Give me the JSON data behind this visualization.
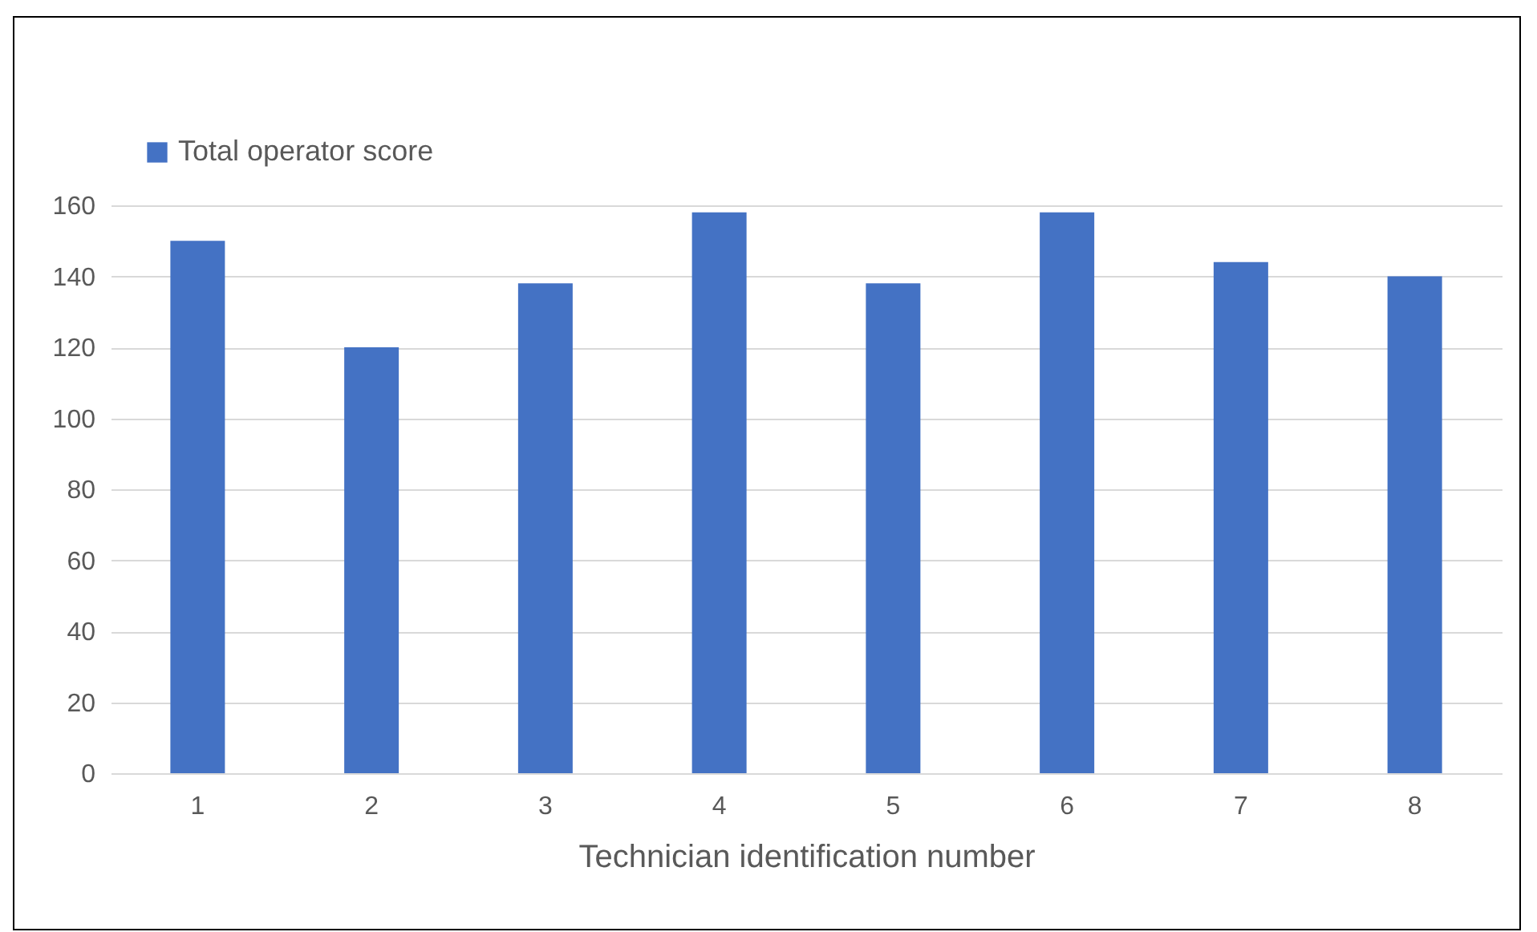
{
  "chart_data": {
    "type": "bar",
    "xlabel": "Technician identification number",
    "categories": [
      "1",
      "2",
      "3",
      "4",
      "5",
      "6",
      "7",
      "8"
    ],
    "series": [
      {
        "name": "Total operator score",
        "color": "#4472c4",
        "values": [
          150,
          120,
          138,
          158,
          138,
          158,
          144,
          140
        ]
      }
    ],
    "ylim": [
      0,
      160
    ],
    "yticks": [
      0,
      20,
      40,
      60,
      80,
      100,
      120,
      140,
      160
    ],
    "grid": "y",
    "legend": "top left"
  }
}
